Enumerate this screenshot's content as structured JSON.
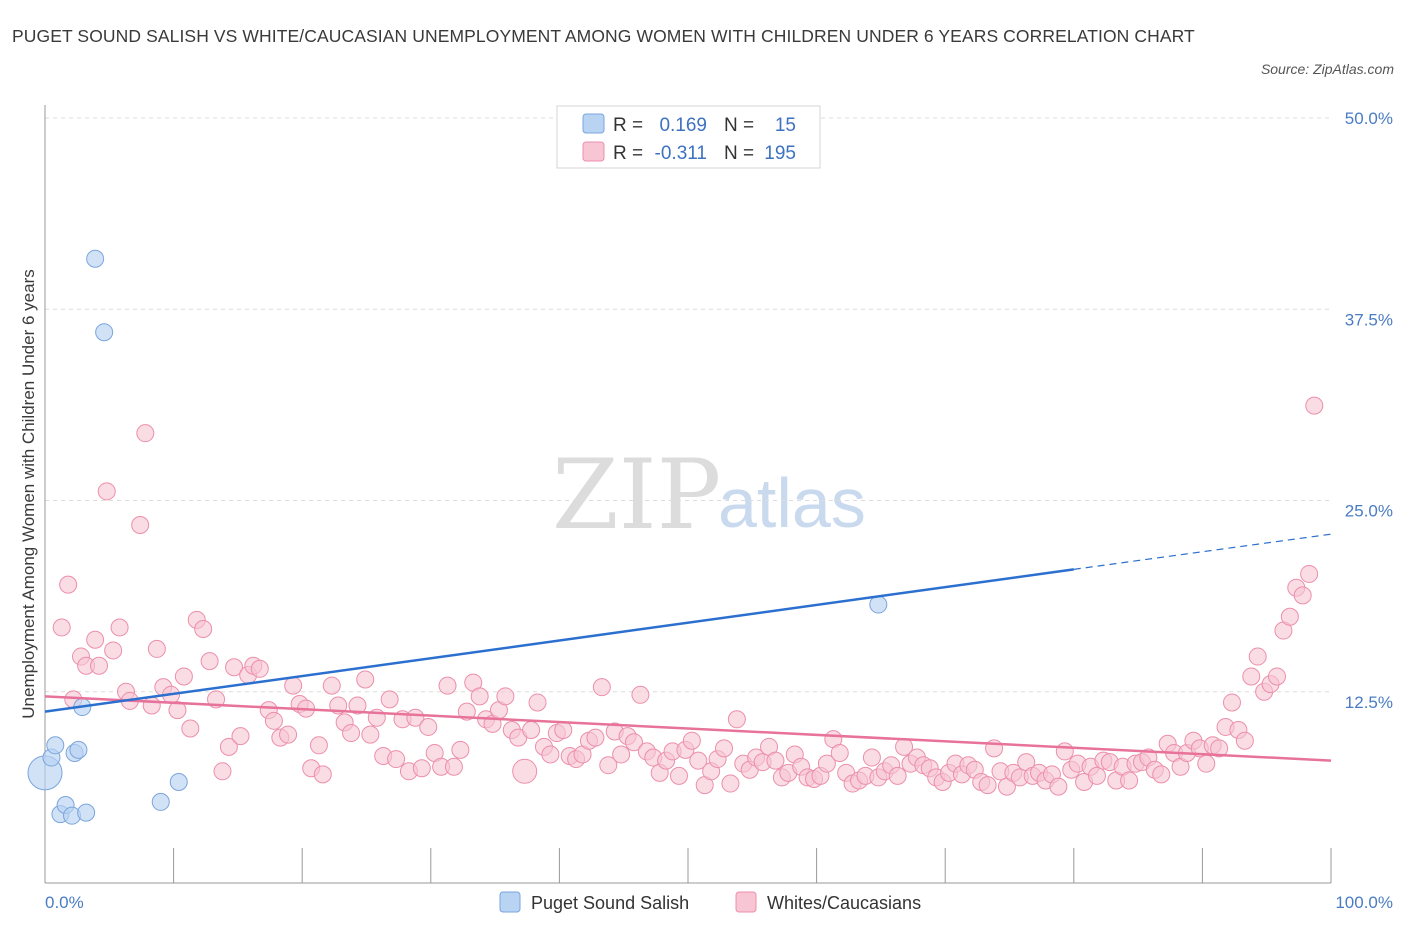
{
  "header": {
    "title": "PUGET SOUND SALISH VS WHITE/CAUCASIAN UNEMPLOYMENT AMONG WOMEN WITH CHILDREN UNDER 6 YEARS CORRELATION CHART",
    "source": "Source: ZipAtlas.com"
  },
  "watermark": {
    "zip": "ZIP",
    "atlas": "atlas"
  },
  "colors": {
    "blue_fill": "#b9d3f3",
    "blue_stroke": "#7aa5dd",
    "blue_line": "#2b6fcf",
    "pink_fill": "#f7c5d4",
    "pink_stroke": "#ec8fab",
    "pink_line": "#e7729a",
    "tick_text": "#4a7cc4",
    "grid": "#dcdcdc"
  },
  "legend": {
    "rows": [
      {
        "r_label": "R =",
        "r_value": "0.169",
        "n_label": "N =",
        "n_value": "15"
      },
      {
        "r_label": "R =",
        "r_value": "-0.311",
        "n_label": "N =",
        "n_value": "195"
      }
    ]
  },
  "chart_data": {
    "type": "scatter",
    "title": "PUGET SOUND SALISH VS WHITE/CAUCASIAN UNEMPLOYMENT AMONG WOMEN WITH CHILDREN UNDER 6 YEARS CORRELATION CHART",
    "xlabel": "",
    "ylabel": "Unemployment Among Women with Children Under 6 years",
    "xlim": [
      0,
      100
    ],
    "ylim": [
      0,
      50
    ],
    "x_tick_labels": [
      "0.0%",
      "100.0%"
    ],
    "y_tick_labels": [
      "12.5%",
      "25.0%",
      "37.5%",
      "50.0%"
    ],
    "y_ticks": [
      12.5,
      25,
      37.5,
      50
    ],
    "grid": true,
    "legend_position": "bottom-center",
    "series": [
      {
        "name": "Puget Sound Salish",
        "r": 0.169,
        "n": 15,
        "trend": {
          "x0": 0,
          "y0": 11.2,
          "x1": 80,
          "y1": 20.5,
          "dashed_to_x": 100,
          "dashed_to_y": 22.8
        },
        "points": [
          [
            0.0,
            7.2,
            3
          ],
          [
            0.5,
            8.2,
            1
          ],
          [
            0.8,
            9.0,
            1
          ],
          [
            1.2,
            4.5,
            1
          ],
          [
            1.6,
            5.1,
            1
          ],
          [
            2.1,
            4.4,
            1
          ],
          [
            2.3,
            8.5,
            1
          ],
          [
            2.6,
            8.7,
            1
          ],
          [
            2.9,
            11.5,
            1
          ],
          [
            3.2,
            4.6,
            1
          ],
          [
            3.9,
            40.8,
            1
          ],
          [
            4.6,
            36.0,
            1
          ],
          [
            9.0,
            5.3,
            1
          ],
          [
            10.4,
            6.6,
            1
          ],
          [
            64.8,
            18.2,
            1
          ]
        ]
      },
      {
        "name": "Whites/Caucasians",
        "r": -0.311,
        "n": 195,
        "trend": {
          "x0": 0,
          "y0": 12.2,
          "x1": 100,
          "y1": 8.0
        },
        "points": [
          [
            1.3,
            16.7,
            1
          ],
          [
            1.8,
            19.5,
            1
          ],
          [
            2.2,
            12.0,
            1
          ],
          [
            2.8,
            14.8,
            1
          ],
          [
            3.2,
            14.2,
            1
          ],
          [
            3.9,
            15.9,
            1
          ],
          [
            4.2,
            14.2,
            1
          ],
          [
            4.8,
            25.6,
            1
          ],
          [
            5.3,
            15.2,
            1
          ],
          [
            5.8,
            16.7,
            1
          ],
          [
            6.3,
            12.5,
            1
          ],
          [
            6.6,
            11.9,
            1
          ],
          [
            7.4,
            23.4,
            1
          ],
          [
            7.8,
            29.4,
            1
          ],
          [
            8.3,
            11.6,
            1
          ],
          [
            8.7,
            15.3,
            1
          ],
          [
            9.2,
            12.8,
            1
          ],
          [
            9.8,
            12.3,
            1
          ],
          [
            10.3,
            11.3,
            1
          ],
          [
            10.8,
            13.5,
            1
          ],
          [
            11.3,
            10.1,
            1
          ],
          [
            11.8,
            17.2,
            1
          ],
          [
            12.3,
            16.6,
            1
          ],
          [
            12.8,
            14.5,
            1
          ],
          [
            13.3,
            12.0,
            1
          ],
          [
            13.8,
            7.3,
            1
          ],
          [
            14.3,
            8.9,
            1
          ],
          [
            14.7,
            14.1,
            1
          ],
          [
            15.2,
            9.6,
            1
          ],
          [
            15.8,
            13.6,
            1
          ],
          [
            16.2,
            14.2,
            1
          ],
          [
            16.7,
            14.0,
            1
          ],
          [
            17.4,
            11.3,
            1
          ],
          [
            17.8,
            10.6,
            1
          ],
          [
            18.3,
            9.5,
            1
          ],
          [
            18.9,
            9.7,
            1
          ],
          [
            19.3,
            12.9,
            1
          ],
          [
            19.8,
            11.7,
            1
          ],
          [
            20.3,
            11.4,
            1
          ],
          [
            20.7,
            7.5,
            1
          ],
          [
            21.3,
            9.0,
            1
          ],
          [
            21.6,
            7.1,
            1
          ],
          [
            22.3,
            12.9,
            1
          ],
          [
            22.8,
            11.6,
            1
          ],
          [
            23.3,
            10.5,
            1
          ],
          [
            23.8,
            9.8,
            1
          ],
          [
            24.3,
            11.6,
            1
          ],
          [
            24.9,
            13.3,
            1
          ],
          [
            25.3,
            9.7,
            1
          ],
          [
            25.8,
            10.8,
            1
          ],
          [
            26.3,
            8.3,
            1
          ],
          [
            26.8,
            12.0,
            1
          ],
          [
            27.3,
            8.1,
            1
          ],
          [
            27.8,
            10.7,
            1
          ],
          [
            28.3,
            7.3,
            1
          ],
          [
            28.8,
            10.8,
            1
          ],
          [
            29.3,
            7.5,
            1
          ],
          [
            29.8,
            10.2,
            1
          ],
          [
            30.3,
            8.5,
            1
          ],
          [
            30.8,
            7.6,
            1
          ],
          [
            31.3,
            12.9,
            1
          ],
          [
            31.8,
            7.6,
            1
          ],
          [
            32.3,
            8.7,
            1
          ],
          [
            32.8,
            11.2,
            1
          ],
          [
            33.3,
            13.1,
            1
          ],
          [
            33.8,
            12.2,
            1
          ],
          [
            34.3,
            10.7,
            1
          ],
          [
            34.8,
            10.4,
            1
          ],
          [
            35.3,
            11.3,
            1
          ],
          [
            35.8,
            12.2,
            1
          ],
          [
            36.3,
            10.0,
            1
          ],
          [
            36.8,
            9.5,
            1
          ],
          [
            37.3,
            7.3,
            2
          ],
          [
            37.8,
            10.0,
            1
          ],
          [
            38.3,
            11.8,
            1
          ],
          [
            38.8,
            8.9,
            1
          ],
          [
            39.3,
            8.4,
            1
          ],
          [
            39.8,
            9.8,
            1
          ],
          [
            40.3,
            10.0,
            1
          ],
          [
            40.8,
            8.3,
            1
          ],
          [
            41.3,
            8.1,
            1
          ],
          [
            41.8,
            8.4,
            1
          ],
          [
            42.3,
            9.3,
            1
          ],
          [
            42.8,
            9.5,
            1
          ],
          [
            43.3,
            12.8,
            1
          ],
          [
            43.8,
            7.7,
            1
          ],
          [
            44.3,
            9.9,
            1
          ],
          [
            44.8,
            8.4,
            1
          ],
          [
            45.3,
            9.6,
            1
          ],
          [
            45.8,
            9.2,
            1
          ],
          [
            46.3,
            12.3,
            1
          ],
          [
            46.8,
            8.6,
            1
          ],
          [
            47.3,
            8.2,
            1
          ],
          [
            47.8,
            7.2,
            1
          ],
          [
            48.3,
            8.0,
            1
          ],
          [
            48.8,
            8.6,
            1
          ],
          [
            49.3,
            7.0,
            1
          ],
          [
            49.8,
            8.7,
            1
          ],
          [
            50.3,
            9.3,
            1
          ],
          [
            50.8,
            8.0,
            1
          ],
          [
            51.3,
            6.4,
            1
          ],
          [
            51.8,
            7.3,
            1
          ],
          [
            52.3,
            8.1,
            1
          ],
          [
            52.8,
            8.8,
            1
          ],
          [
            53.3,
            6.5,
            1
          ],
          [
            53.8,
            10.7,
            1
          ],
          [
            54.3,
            7.8,
            1
          ],
          [
            54.8,
            7.4,
            1
          ],
          [
            55.3,
            8.2,
            1
          ],
          [
            55.8,
            7.9,
            1
          ],
          [
            56.3,
            8.9,
            1
          ],
          [
            56.8,
            8.0,
            1
          ],
          [
            57.3,
            6.9,
            1
          ],
          [
            57.8,
            7.2,
            1
          ],
          [
            58.3,
            8.4,
            1
          ],
          [
            58.8,
            7.6,
            1
          ],
          [
            59.3,
            6.9,
            1
          ],
          [
            59.8,
            6.8,
            1
          ],
          [
            60.3,
            7.0,
            1
          ],
          [
            60.8,
            7.8,
            1
          ],
          [
            61.3,
            9.4,
            1
          ],
          [
            61.8,
            8.5,
            1
          ],
          [
            62.3,
            7.2,
            1
          ],
          [
            62.8,
            6.5,
            1
          ],
          [
            63.3,
            6.7,
            1
          ],
          [
            63.8,
            7.0,
            1
          ],
          [
            64.3,
            8.2,
            1
          ],
          [
            64.8,
            6.9,
            1
          ],
          [
            65.3,
            7.3,
            1
          ],
          [
            65.8,
            7.7,
            1
          ],
          [
            66.3,
            7.0,
            1
          ],
          [
            66.8,
            8.9,
            1
          ],
          [
            67.3,
            7.8,
            1
          ],
          [
            67.8,
            8.2,
            1
          ],
          [
            68.3,
            7.7,
            1
          ],
          [
            68.8,
            7.5,
            1
          ],
          [
            69.3,
            6.9,
            1
          ],
          [
            69.8,
            6.6,
            1
          ],
          [
            70.3,
            7.2,
            1
          ],
          [
            70.8,
            7.8,
            1
          ],
          [
            71.3,
            7.1,
            1
          ],
          [
            71.8,
            7.7,
            1
          ],
          [
            72.3,
            7.4,
            1
          ],
          [
            72.8,
            6.6,
            1
          ],
          [
            73.3,
            6.4,
            1
          ],
          [
            73.8,
            8.8,
            1
          ],
          [
            74.3,
            7.3,
            1
          ],
          [
            74.8,
            6.3,
            1
          ],
          [
            75.3,
            7.2,
            1
          ],
          [
            75.8,
            6.9,
            1
          ],
          [
            76.3,
            7.9,
            1
          ],
          [
            76.8,
            7.0,
            1
          ],
          [
            77.3,
            7.2,
            1
          ],
          [
            77.8,
            6.7,
            1
          ],
          [
            78.3,
            7.1,
            1
          ],
          [
            78.8,
            6.3,
            1
          ],
          [
            79.3,
            8.6,
            1
          ],
          [
            79.8,
            7.4,
            1
          ],
          [
            80.3,
            7.8,
            1
          ],
          [
            80.8,
            6.6,
            1
          ],
          [
            81.3,
            7.6,
            1
          ],
          [
            81.8,
            7.0,
            1
          ],
          [
            82.3,
            8.0,
            1
          ],
          [
            82.8,
            7.9,
            1
          ],
          [
            83.3,
            6.7,
            1
          ],
          [
            83.8,
            7.6,
            1
          ],
          [
            84.3,
            6.7,
            1
          ],
          [
            84.8,
            7.8,
            1
          ],
          [
            85.3,
            7.9,
            1
          ],
          [
            85.8,
            8.2,
            1
          ],
          [
            86.3,
            7.4,
            1
          ],
          [
            86.8,
            7.1,
            1
          ],
          [
            87.3,
            9.1,
            1
          ],
          [
            87.8,
            8.5,
            1
          ],
          [
            88.3,
            7.6,
            1
          ],
          [
            88.8,
            8.5,
            1
          ],
          [
            89.3,
            9.3,
            1
          ],
          [
            89.8,
            8.8,
            1
          ],
          [
            90.3,
            7.8,
            1
          ],
          [
            90.8,
            9.0,
            1
          ],
          [
            91.3,
            8.8,
            1
          ],
          [
            91.8,
            10.2,
            1
          ],
          [
            92.3,
            11.8,
            1
          ],
          [
            92.8,
            10.0,
            1
          ],
          [
            93.3,
            9.3,
            1
          ],
          [
            93.8,
            13.5,
            1
          ],
          [
            94.3,
            14.8,
            1
          ],
          [
            94.8,
            12.5,
            1
          ],
          [
            95.3,
            13.0,
            1
          ],
          [
            95.8,
            13.5,
            1
          ],
          [
            96.3,
            16.5,
            1
          ],
          [
            96.8,
            17.4,
            1
          ],
          [
            97.3,
            19.3,
            1
          ],
          [
            97.8,
            18.8,
            1
          ],
          [
            98.3,
            20.2,
            1
          ],
          [
            98.7,
            31.2,
            1
          ]
        ]
      }
    ]
  },
  "bottom_legend": {
    "items": [
      {
        "label": "Puget Sound Salish"
      },
      {
        "label": "Whites/Caucasians"
      }
    ]
  }
}
